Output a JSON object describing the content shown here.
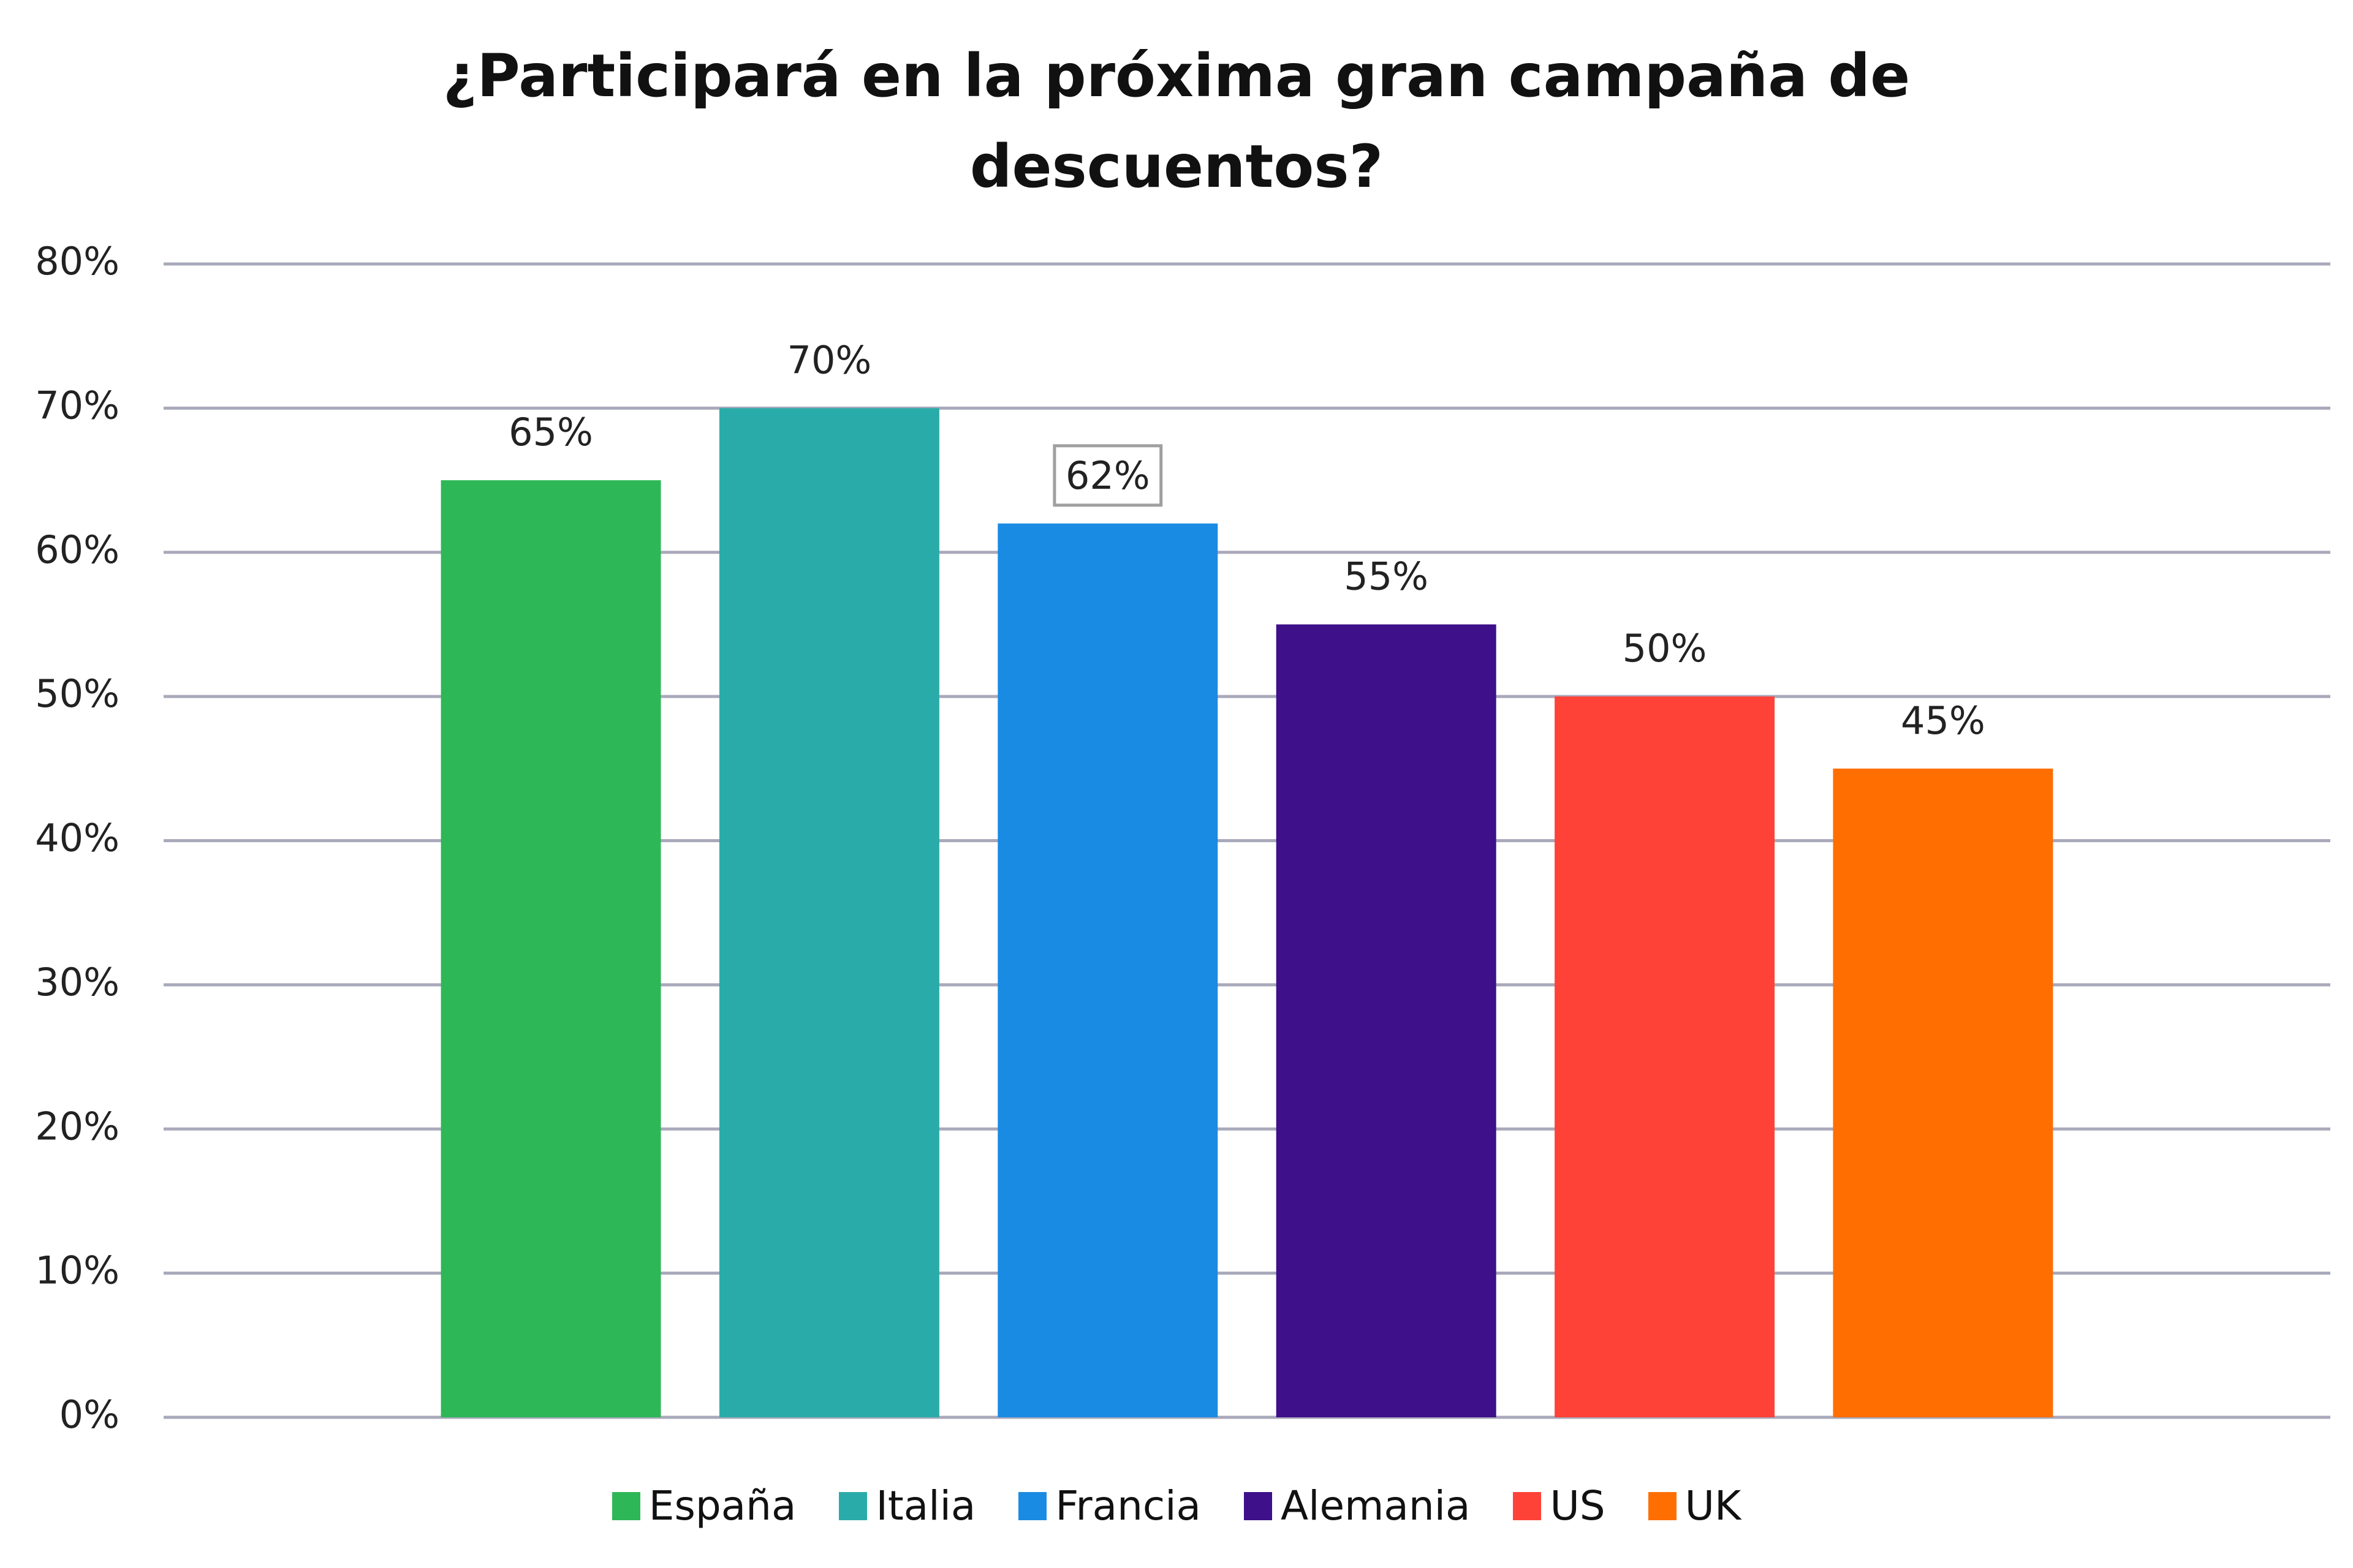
{
  "chart_data": {
    "type": "bar",
    "title": "¿Participará en la próxima gran campaña de descuentos?",
    "categories": [
      null
    ],
    "series": [
      {
        "name": "España",
        "color": "#2eb757",
        "values": [
          65
        ],
        "value_labels": [
          "65%"
        ]
      },
      {
        "name": "Italia",
        "color": "#29aca9",
        "values": [
          70
        ],
        "value_labels": [
          "70%"
        ]
      },
      {
        "name": "Francia",
        "color": "#1a8be3",
        "values": [
          62
        ],
        "value_labels": [
          "62%"
        ]
      },
      {
        "name": "Alemania",
        "color": "#3e108a",
        "values": [
          55
        ],
        "value_labels": [
          "55%"
        ]
      },
      {
        "name": "US",
        "color": "#ff4238",
        "values": [
          50
        ],
        "value_labels": [
          "50%"
        ]
      },
      {
        "name": "UK",
        "color": "#ff6e00",
        "values": [
          45
        ],
        "value_labels": [
          "45%"
        ]
      }
    ],
    "ylim": [
      0,
      80
    ],
    "yticks": [
      {
        "value": 0,
        "label": "0%"
      },
      {
        "value": 10,
        "label": "10%"
      },
      {
        "value": 20,
        "label": "20%"
      },
      {
        "value": 30,
        "label": "30%"
      },
      {
        "value": 40,
        "label": "40%"
      },
      {
        "value": 50,
        "label": "50%"
      },
      {
        "value": 60,
        "label": "60%"
      },
      {
        "value": 70,
        "label": "70%"
      },
      {
        "value": 80,
        "label": "80%"
      }
    ],
    "grid": true,
    "legend": "bottom"
  }
}
